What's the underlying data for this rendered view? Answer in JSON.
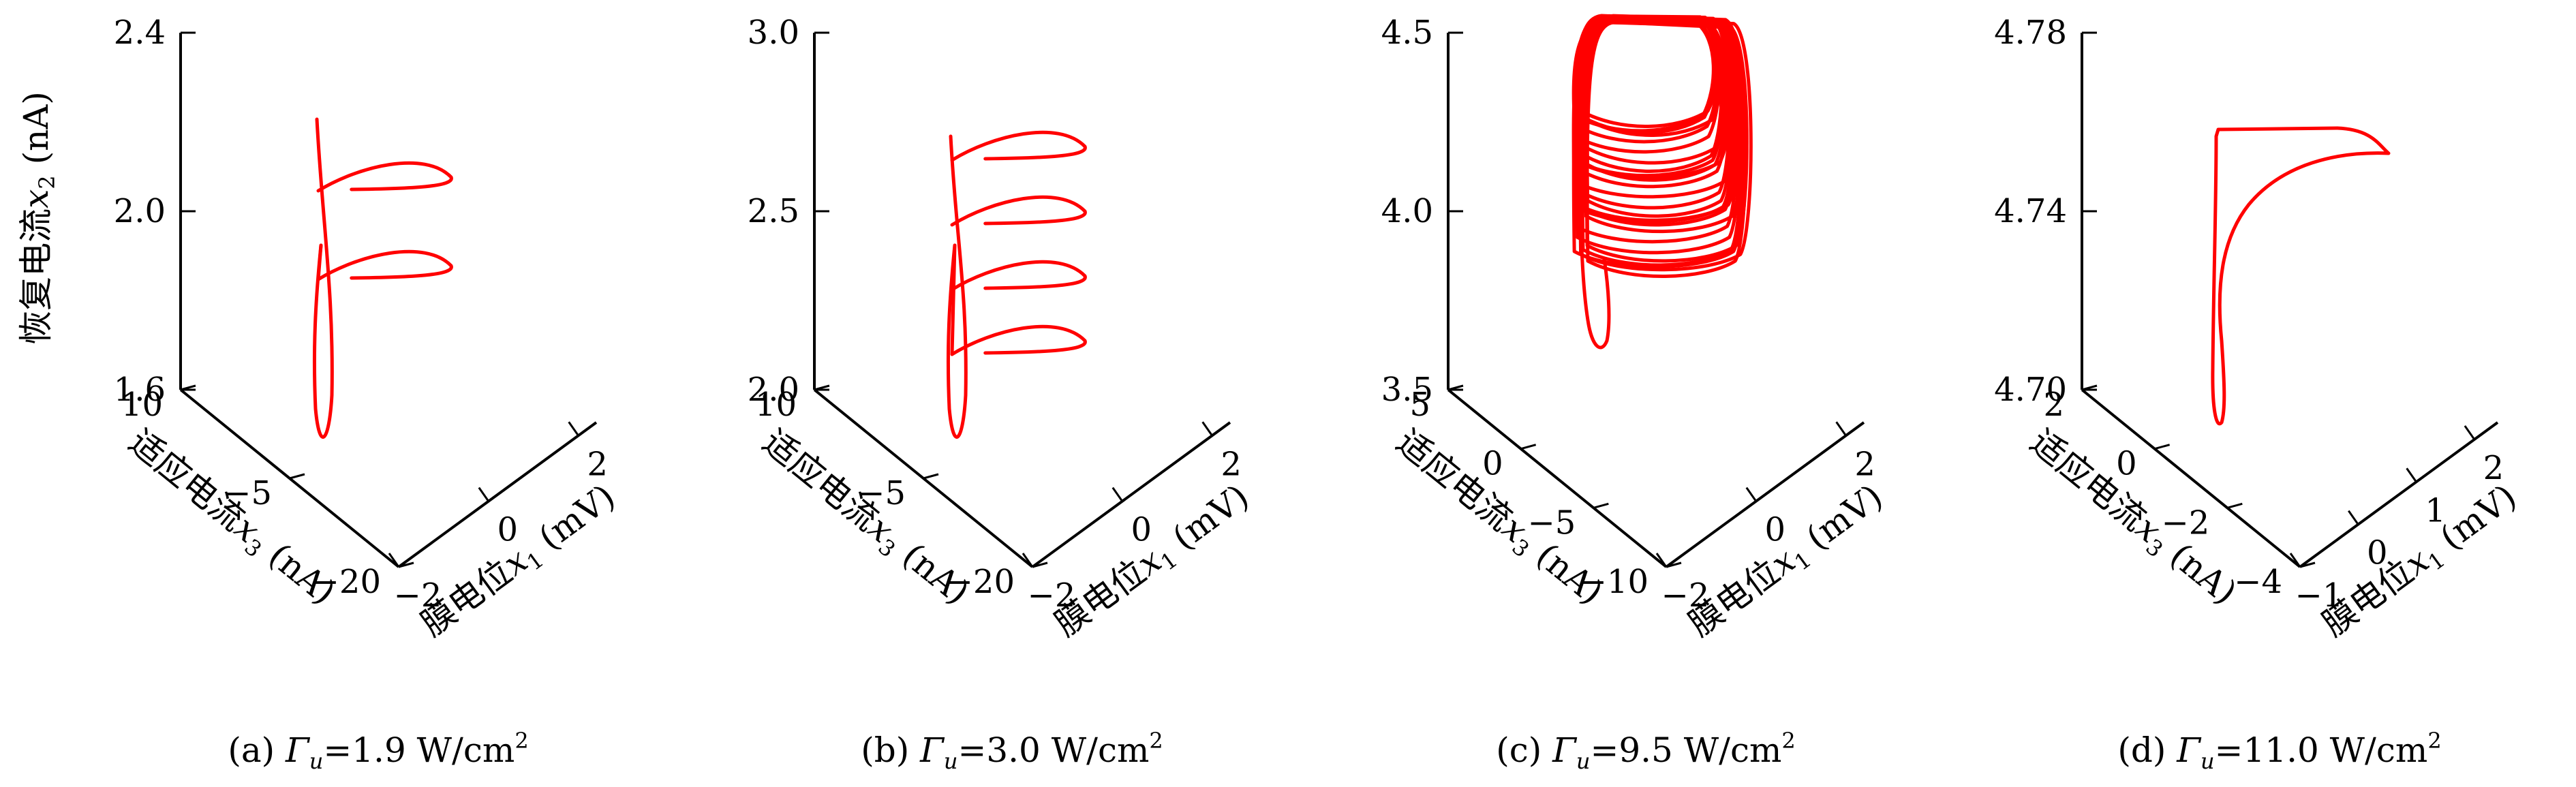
{
  "chart_data": [
    {
      "type": "line",
      "subtype": "3d-phase-trajectory",
      "caption": "(a) Γu=1.9 W/cm²",
      "caption_prefix": "(a)",
      "gamma_symbol": "Γ",
      "gamma_sub": "u",
      "gamma_value": "=1.9 W/cm",
      "gamma_exp": "2",
      "zlabel": "恢复电流x2 (nA)",
      "zlabel_text": "恢复电流",
      "zlabel_var": "x",
      "zlabel_sub": "2",
      "zlabel_unit": " (nA)",
      "xlabel_text": "膜电位",
      "xlabel_var": "x",
      "xlabel_sub": "1",
      "xlabel_unit": " (mV)",
      "ylabel_text": "适应电流",
      "ylabel_var": "x",
      "ylabel_sub": "3",
      "ylabel_unit": " (nA)",
      "z_ticks": [
        "2.4",
        "2.0",
        "1.6"
      ],
      "z_tick_values": [
        2.4,
        2.0,
        1.6
      ],
      "x_ticks": [
        "−2",
        "0",
        "2"
      ],
      "x_tick_values": [
        -2,
        0,
        2
      ],
      "y_ticks": [
        "10",
        "−5",
        "−20"
      ],
      "y_tick_values": [
        10,
        -5,
        -20
      ],
      "xlim": [
        -2,
        2.4
      ],
      "ylim": [
        -20,
        10
      ],
      "zlim": [
        1.6,
        2.4
      ],
      "attractor": {
        "kind": "spiking",
        "loops": 2,
        "line_color": "#ff0000"
      }
    },
    {
      "type": "line",
      "subtype": "3d-phase-trajectory",
      "caption": "(b) Γu=3.0 W/cm²",
      "caption_prefix": "(b)",
      "gamma_symbol": "Γ",
      "gamma_sub": "u",
      "gamma_value": "=3.0 W/cm",
      "gamma_exp": "2",
      "zlabel": "",
      "xlabel_text": "膜电位",
      "xlabel_var": "x",
      "xlabel_sub": "1",
      "xlabel_unit": " (mV)",
      "ylabel_text": "适应电流",
      "ylabel_var": "x",
      "ylabel_sub": "3",
      "ylabel_unit": " (nA)",
      "z_ticks": [
        "3.0",
        "2.5",
        "2.0"
      ],
      "z_tick_values": [
        3.0,
        2.5,
        2.0
      ],
      "x_ticks": [
        "−2",
        "0",
        "2"
      ],
      "x_tick_values": [
        -2,
        0,
        2
      ],
      "y_ticks": [
        "10",
        "−5",
        "−20"
      ],
      "y_tick_values": [
        10,
        -5,
        -20
      ],
      "xlim": [
        -2,
        2.4
      ],
      "ylim": [
        -20,
        10
      ],
      "zlim": [
        2.0,
        3.0
      ],
      "attractor": {
        "kind": "spiking",
        "loops": 4,
        "line_color": "#ff0000"
      }
    },
    {
      "type": "line",
      "subtype": "3d-phase-trajectory",
      "caption": "(c) Γu=9.5 W/cm²",
      "caption_prefix": "(c)",
      "gamma_symbol": "Γ",
      "gamma_sub": "u",
      "gamma_value": "=9.5 W/cm",
      "gamma_exp": "2",
      "zlabel": "",
      "xlabel_text": "膜电位",
      "xlabel_var": "x",
      "xlabel_sub": "1",
      "xlabel_unit": " (mV)",
      "ylabel_text": "适应电流",
      "ylabel_var": "x",
      "ylabel_sub": "3",
      "ylabel_unit": " (nA)",
      "z_ticks": [
        "4.5",
        "4.0",
        "3.5"
      ],
      "z_tick_values": [
        4.5,
        4.0,
        3.5
      ],
      "x_ticks": [
        "−2",
        "0",
        "2"
      ],
      "x_tick_values": [
        -2,
        0,
        2
      ],
      "y_ticks": [
        "5",
        "0",
        "−5",
        "−10"
      ],
      "y_tick_values": [
        5,
        0,
        -5,
        -10
      ],
      "xlim": [
        -2,
        2.4
      ],
      "ylim": [
        -10,
        5
      ],
      "zlim": [
        3.5,
        4.5
      ],
      "attractor": {
        "kind": "chaotic",
        "loops": 26,
        "line_color": "#ff0000"
      }
    },
    {
      "type": "line",
      "subtype": "3d-phase-trajectory",
      "caption": "(d) Γu=11.0 W/cm²",
      "caption_prefix": "(d)",
      "gamma_symbol": "Γ",
      "gamma_sub": "u",
      "gamma_value": "=11.0 W/cm",
      "gamma_exp": "2",
      "zlabel": "",
      "xlabel_text": "膜电位",
      "xlabel_var": "x",
      "xlabel_sub": "1",
      "xlabel_unit": " (mV)",
      "ylabel_text": "适应电流",
      "ylabel_var": "x",
      "ylabel_sub": "3",
      "ylabel_unit": " (nA)",
      "z_ticks": [
        "4.78",
        "4.74",
        "4.70"
      ],
      "z_tick_values": [
        4.78,
        4.74,
        4.7
      ],
      "x_ticks": [
        "−1",
        "0",
        "1",
        "2"
      ],
      "x_tick_values": [
        -1,
        0,
        1,
        2
      ],
      "y_ticks": [
        "2",
        "0",
        "−2",
        "−4"
      ],
      "y_tick_values": [
        2,
        0,
        -2,
        -4
      ],
      "xlim": [
        -1,
        2.4
      ],
      "ylim": [
        -4,
        2
      ],
      "zlim": [
        4.7,
        4.78
      ],
      "attractor": {
        "kind": "period-1",
        "loops": 1,
        "line_color": "#ff0000"
      }
    }
  ]
}
